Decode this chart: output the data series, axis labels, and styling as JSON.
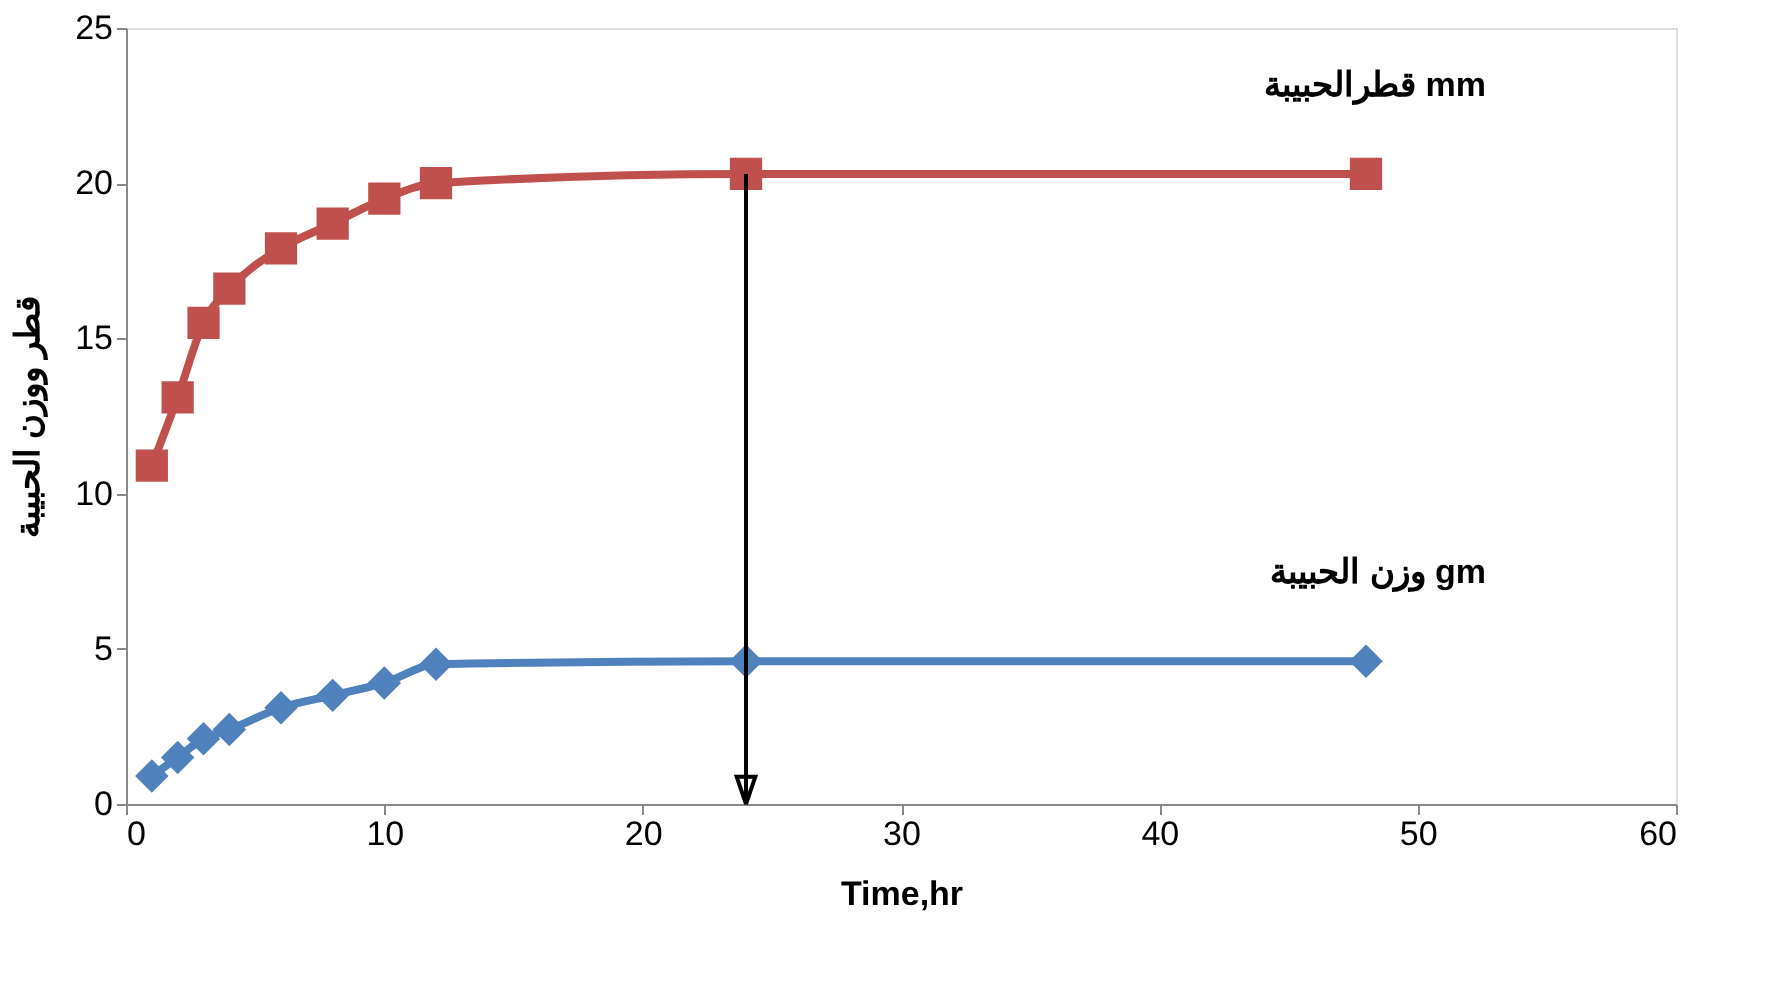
{
  "chart_data": {
    "type": "line",
    "xlabel": "Time,hr",
    "ylabel": "قطر ووزن الحبيبة",
    "x": [
      1,
      2,
      3,
      4,
      6,
      8,
      10,
      12,
      24,
      48
    ],
    "series": [
      {
        "name": "قطرالحبيبة mm",
        "color": "#c0504d",
        "marker": "square",
        "values": [
          10.9,
          13.1,
          15.5,
          16.6,
          17.9,
          18.7,
          19.5,
          20.0,
          20.3,
          20.3
        ]
      },
      {
        "name": "وزن الحبيبة gm",
        "color": "#4f81bd",
        "marker": "diamond",
        "values": [
          0.9,
          1.5,
          2.1,
          2.4,
          3.1,
          3.5,
          3.9,
          4.5,
          4.6,
          4.6
        ]
      }
    ],
    "xlim": [
      0,
      60
    ],
    "xticks": [
      0,
      10,
      20,
      30,
      40,
      50,
      60
    ],
    "ylim": [
      0,
      25
    ],
    "yticks": [
      0,
      5,
      10,
      15,
      20,
      25
    ],
    "ref_lines": [
      {
        "axis": "x",
        "value": 24,
        "color": "#000000"
      }
    ],
    "grid": false
  }
}
